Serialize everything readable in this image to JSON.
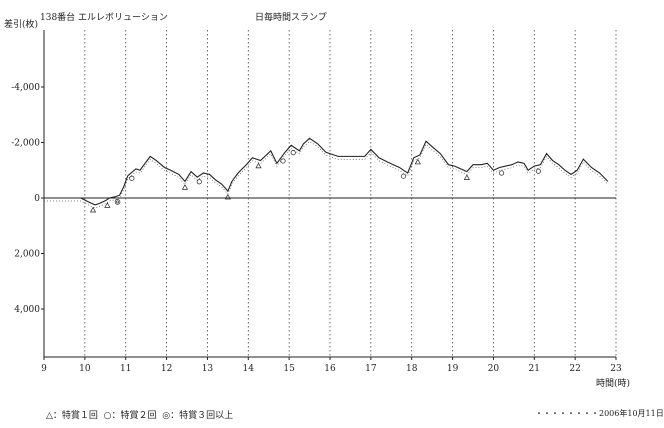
{
  "header": {
    "machine": "138番台 エルレボリューション",
    "title": "日毎時間スランプ"
  },
  "footer": {
    "legend": [
      {
        "symbol": "△",
        "label": "：特賞１回"
      },
      {
        "symbol": "○",
        "label": "：特賞２回"
      },
      {
        "symbol": "◎",
        "label": "：特賞３回以上"
      }
    ],
    "date_line": "・・・・・・・・",
    "date": "2006年10月11日"
  },
  "chart_data": {
    "type": "line",
    "title": "日毎時間スランプ",
    "ylabel": "差引(枚)",
    "xlabel": "時間(時)",
    "xlim": [
      9,
      23
    ],
    "ylim": [
      5600,
      -5600
    ],
    "y_inverted": true,
    "grid": "vertical dotted at each hour",
    "x_ticks": [
      "9",
      "10",
      "11",
      "12",
      "13",
      "14",
      "15",
      "16",
      "17",
      "18",
      "19",
      "20",
      "21",
      "22",
      "23"
    ],
    "y_ticks": [
      {
        "value": -4000,
        "label": "-4,000"
      },
      {
        "value": -2000,
        "label": "-2,000"
      },
      {
        "value": 0,
        "label": "0"
      },
      {
        "value": 2000,
        "label": "2,000"
      },
      {
        "value": 4000,
        "label": "4,000"
      }
    ],
    "series": [
      {
        "x": [
          9.0,
          9.9,
          10.1,
          10.25,
          10.35,
          10.5,
          10.6,
          10.75,
          10.85,
          10.95,
          11.05,
          11.25,
          11.35,
          11.6,
          11.75,
          11.95,
          12.1,
          12.3,
          12.45,
          12.6,
          12.75,
          12.9,
          13.05,
          13.2,
          13.35,
          13.5,
          13.6,
          13.75,
          13.95,
          14.1,
          14.3,
          14.55,
          14.7,
          14.9,
          15.05,
          15.25,
          15.35,
          15.5,
          15.7,
          15.9,
          16.2,
          16.5,
          16.7,
          16.85,
          17.0,
          17.2,
          17.4,
          17.55,
          17.7,
          17.9,
          18.05,
          18.2,
          18.35,
          18.5,
          18.7,
          18.9,
          19.05,
          19.2,
          19.35,
          19.5,
          19.7,
          19.85,
          20.0,
          20.15,
          20.3,
          20.45,
          20.6,
          20.75,
          20.85,
          21.0,
          21.15,
          21.3,
          21.45,
          21.6,
          21.75,
          21.9,
          22.05,
          22.2,
          22.4,
          22.6,
          22.8
        ],
        "y": [
          0,
          0,
          150,
          250,
          200,
          100,
          0,
          -50,
          -100,
          -400,
          -800,
          -1050,
          -1000,
          -1500,
          -1350,
          -1100,
          -1000,
          -850,
          -600,
          -950,
          -750,
          -900,
          -850,
          -650,
          -500,
          -250,
          -600,
          -900,
          -1200,
          -1450,
          -1350,
          -1700,
          -1250,
          -1650,
          -1900,
          -1700,
          -1950,
          -2150,
          -1950,
          -1650,
          -1500,
          -1500,
          -1500,
          -1500,
          -1750,
          -1450,
          -1300,
          -1200,
          -1100,
          -900,
          -1450,
          -1550,
          -2050,
          -1850,
          -1600,
          -1200,
          -1150,
          -1050,
          -950,
          -1200,
          -1200,
          -1250,
          -1000,
          -1100,
          -1150,
          -1200,
          -1300,
          -1250,
          -1000,
          -1150,
          -1200,
          -1600,
          -1350,
          -1200,
          -1000,
          -850,
          -1000,
          -1400,
          -1100,
          -900,
          -600
        ]
      }
    ],
    "markers": {
      "triangle": [
        10.2,
        10.55,
        12.45,
        13.5,
        14.25,
        18.15,
        19.35
      ],
      "circle": [
        11.15,
        12.8,
        14.85,
        15.1,
        17.8,
        20.2,
        21.1
      ],
      "double_circle": [
        10.8
      ]
    }
  }
}
